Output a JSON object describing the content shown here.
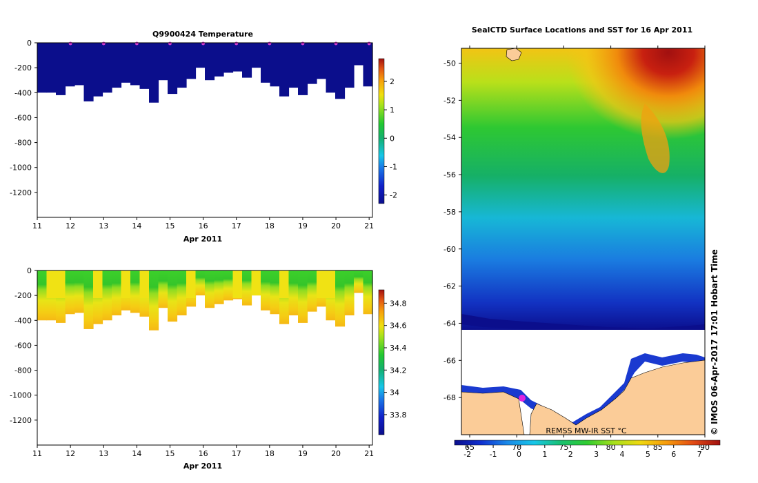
{
  "chart_data": [
    {
      "type": "heatmap",
      "title": "Q9900424  Temperature",
      "xlabel": "Apr 2011",
      "ylabel": "",
      "x_ticks": [
        "11",
        "12",
        "13",
        "14",
        "15",
        "16",
        "17",
        "18",
        "19",
        "20",
        "21"
      ],
      "xlim": [
        11,
        21.1
      ],
      "y_ticks": [
        "0",
        "-200",
        "-400",
        "-600",
        "-800",
        "-1000",
        "-1200"
      ],
      "ylim": [
        -1400,
        0
      ],
      "colorbar": {
        "min": -2.3,
        "max": 2.8,
        "ticks": [
          "2",
          "1",
          "0",
          "-1",
          "-2"
        ],
        "tick_values": [
          2,
          1,
          0,
          -1,
          -2
        ]
      },
      "profile_depths_m": [
        -400,
        -400,
        -420,
        -350,
        -340,
        -470,
        -430,
        -400,
        -360,
        -320,
        -340,
        -370,
        -480,
        -300,
        -410,
        -360,
        -290,
        -200,
        -300,
        -270,
        -240,
        -230,
        -280,
        -200,
        -320,
        -350,
        -430,
        -360,
        -420,
        -330,
        -290,
        -400,
        -450,
        -360,
        -180,
        -350
      ],
      "surface_markers": [
        12,
        13,
        14,
        15,
        16,
        17,
        18,
        19,
        20,
        21
      ],
      "values_note": "near-surface temperatures approx -1.8 to -1.6 °C throughout"
    },
    {
      "type": "heatmap",
      "title": "",
      "xlabel": "Apr 2011",
      "ylabel": "",
      "x_ticks": [
        "11",
        "12",
        "13",
        "14",
        "15",
        "16",
        "17",
        "18",
        "19",
        "20",
        "21"
      ],
      "xlim": [
        11,
        21.1
      ],
      "y_ticks": [
        "0",
        "-200",
        "-400",
        "-600",
        "-800",
        "-1000",
        "-1200"
      ],
      "ylim": [
        -1400,
        0
      ],
      "colorbar": {
        "min": 33.62,
        "max": 34.92,
        "ticks": [
          "34.8",
          "34.6",
          "34.4",
          "34.2",
          "34",
          "33.8"
        ],
        "tick_values": [
          34.8,
          34.6,
          34.4,
          34.2,
          34.0,
          33.8
        ]
      },
      "values_note": "salinity approx 34.2 near surface increasing to approx 34.6 at depth"
    },
    {
      "type": "heatmap",
      "title": "SealCTD Surface Locations and SST for 16 Apr 2011",
      "xlabel": "",
      "ylabel": "",
      "y_ticks": [
        "-50",
        "-52",
        "-54",
        "-56",
        "-58",
        "-60",
        "-62",
        "-64",
        "-66",
        "-68"
      ],
      "ylim": [
        -70,
        -49.2
      ],
      "x_ticks": [
        "65",
        "70",
        "75",
        "80",
        "85",
        "90"
      ],
      "colorbar": {
        "label": "REMSS MW-IR SST °C",
        "ticks": [
          "-2",
          "-1",
          "0",
          "1",
          "2",
          "3",
          "4",
          "5",
          "6",
          "7"
        ],
        "min": -2.5,
        "max": 7.8
      },
      "credit": "© IMOS 06-Apr-2017 17:01 Hobart Time",
      "values_note": "SST approx 7 °C in the north-east, decreasing southward to approx -1.8 °C at the ice edge near -64"
    }
  ]
}
